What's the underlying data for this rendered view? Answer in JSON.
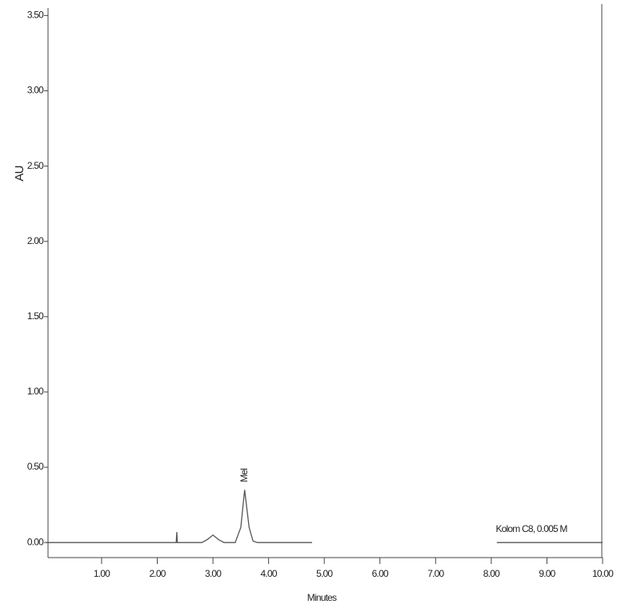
{
  "chart_data": {
    "type": "line",
    "y_label": "AU",
    "x_label": "Minutes",
    "annotations": [
      "Mel",
      "Kolom C8, 0.005 M"
    ],
    "xlim": [
      0,
      10
    ],
    "ylim": [
      -0.1,
      3.55
    ],
    "xticks": [
      {
        "value": 1,
        "label": "1.00"
      },
      {
        "value": 2,
        "label": "2.00"
      },
      {
        "value": 3,
        "label": "3.00"
      },
      {
        "value": 4,
        "label": "4.00"
      },
      {
        "value": 5,
        "label": "5.00"
      },
      {
        "value": 6,
        "label": "6.00"
      },
      {
        "value": 7,
        "label": "7.00"
      },
      {
        "value": 8,
        "label": "8.00"
      },
      {
        "value": 9,
        "label": "9.00"
      },
      {
        "value": 10,
        "label": "10.00"
      }
    ],
    "yticks": [
      {
        "value": 0,
        "label": "0.00"
      },
      {
        "value": 0.5,
        "label": "0.50"
      },
      {
        "value": 1,
        "label": "1.00"
      },
      {
        "value": 1.5,
        "label": "1.50"
      },
      {
        "value": 2,
        "label": "2.00"
      },
      {
        "value": 2.5,
        "label": "2.50"
      },
      {
        "value": 3,
        "label": "3.00"
      },
      {
        "value": 3.5,
        "label": "3.50"
      }
    ],
    "series": [
      {
        "color": "#555555",
        "x": [
          0,
          2.34,
          2.35,
          2.36,
          2.8,
          2.9,
          3.0,
          3.1,
          3.2,
          3.4,
          3.5,
          3.57,
          3.65,
          3.72,
          3.8,
          4.0,
          4.78,
          6.5,
          8.1,
          10
        ],
        "values": [
          0,
          0,
          0.07,
          0,
          0,
          0.02,
          0.05,
          0.02,
          0,
          0,
          0.1,
          0.35,
          0.1,
          0.01,
          0,
          0,
          0,
          null,
          0,
          0
        ]
      }
    ]
  }
}
